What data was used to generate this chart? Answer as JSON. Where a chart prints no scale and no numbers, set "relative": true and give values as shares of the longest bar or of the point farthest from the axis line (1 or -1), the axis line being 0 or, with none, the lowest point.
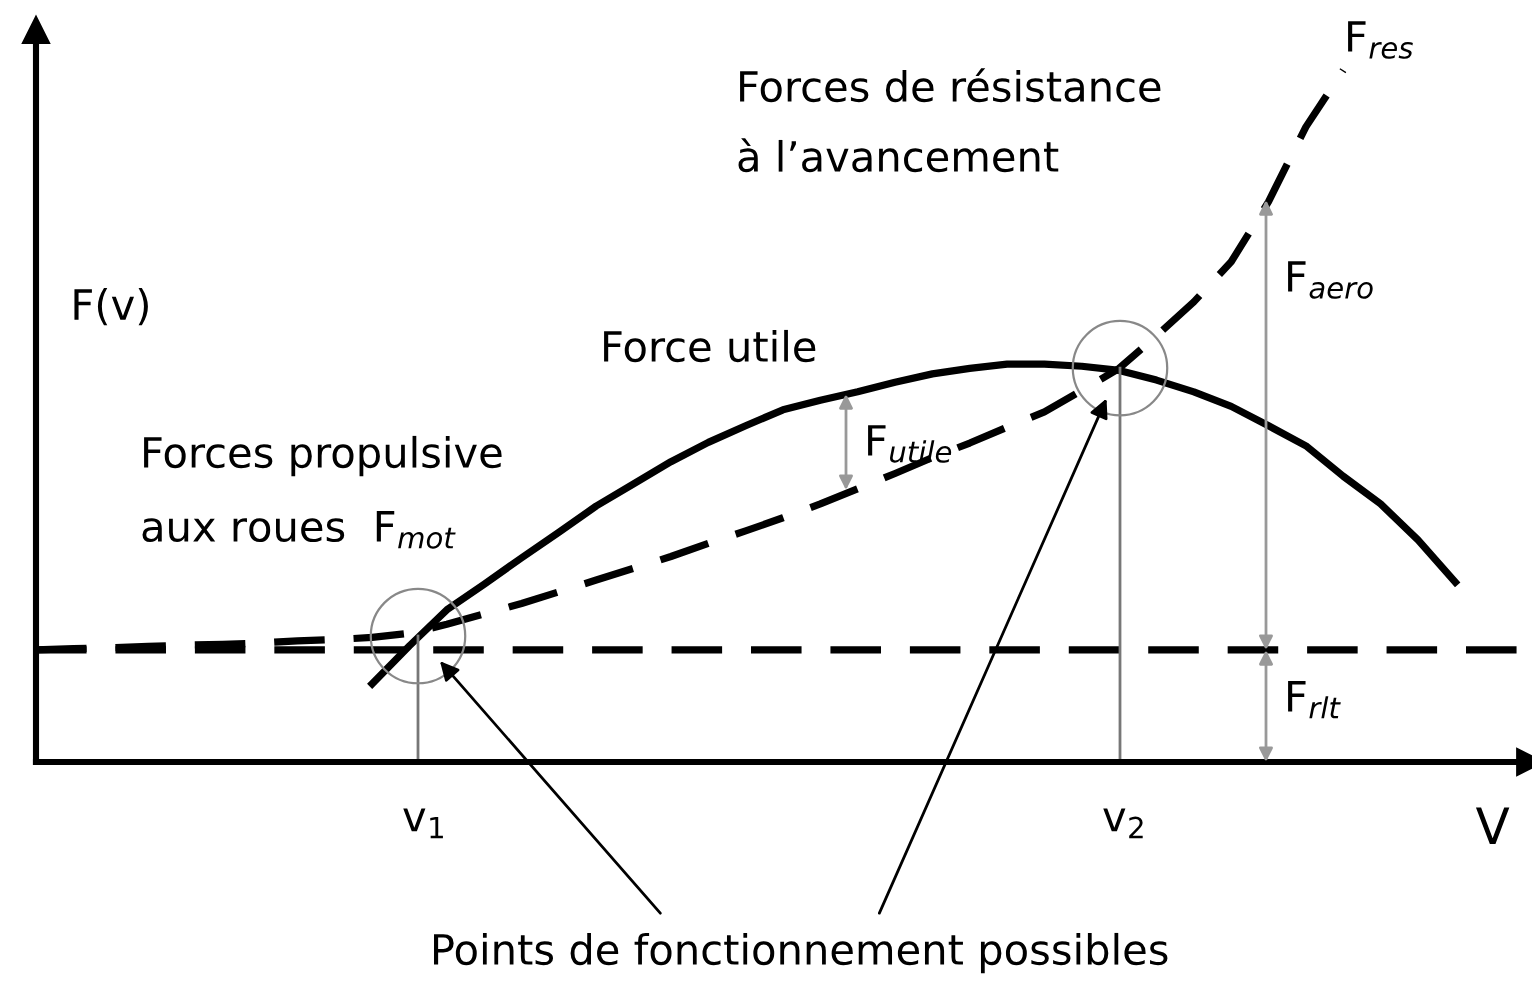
{
  "chart_data": {
    "type": "line",
    "relative": true,
    "xlabel": "V",
    "ylabel": "F(v)",
    "marker": "none",
    "categories": [
      null,
      null,
      null,
      null,
      null,
      null,
      null,
      null,
      null,
      null,
      null,
      null,
      null,
      null,
      null,
      null,
      null,
      null,
      null,
      null,
      null,
      null,
      null,
      null,
      null,
      null,
      null,
      null,
      null,
      null,
      null,
      null,
      null,
      null,
      null,
      null,
      null,
      null,
      null,
      null,
      null
    ],
    "series": [
      {
        "color": "#000000",
        "line_style": "solid",
        "values": [
          null,
          null,
          null,
          null,
          null,
          null,
          null,
          null,
          null,
          0.113,
          0.168,
          0.22,
          0.257,
          0.295,
          0.332,
          0.37,
          0.402,
          0.434,
          0.462,
          0.486,
          0.509,
          0.523,
          0.535,
          0.549,
          0.561,
          0.569,
          0.575,
          0.575,
          0.572,
          0.566,
          0.552,
          0.535,
          0.514,
          0.486,
          0.457,
          0.413,
          0.373,
          0.321,
          0.26,
          null,
          null
        ]
      },
      {
        "color": "#000000",
        "line_style": "dashed",
        "values": [
          0.162,
          0.164,
          0.165,
          0.167,
          0.169,
          0.17,
          0.172,
          0.175,
          0.177,
          0.18,
          0.186,
          0.199,
          0.214,
          0.229,
          0.246,
          0.263,
          0.28,
          0.297,
          0.316,
          0.334,
          0.353,
          0.373,
          0.395,
          0.417,
          0.44,
          0.461,
          0.484,
          0.506,
          0.537,
          0.569,
          0.616,
          0.665,
          0.723,
          0.81,
          0.918,
          1.0,
          null,
          null,
          null,
          null,
          null
        ]
      },
      {
        "color": "#000000",
        "line_style": "dashed",
        "values": [
          0.162,
          0.162,
          0.162,
          0.162,
          0.162,
          0.162,
          0.162,
          0.162,
          0.162,
          0.162,
          0.162,
          0.162,
          0.162,
          0.162,
          0.162,
          0.162,
          0.162,
          0.162,
          0.162,
          0.162,
          0.162,
          0.162,
          0.162,
          0.162,
          0.162,
          0.162,
          0.162,
          0.162,
          0.162,
          0.162,
          0.162,
          0.162,
          0.162,
          0.162,
          0.162,
          0.162,
          0.162,
          0.162,
          0.162,
          0.162,
          0.162
        ]
      }
    ],
    "annotations": [
      "v$_{1}$",
      "v$_{2}$",
      "Forces propulsive",
      "aux roues  F$_{mot}$",
      "Force utile",
      "Forces de résistance",
      "à l’avancement",
      "F$_{res}$",
      "F$_{utile}$",
      "F$_{aero}$",
      "F$_{rlt}$",
      "Points de fonctionnement possibles"
    ]
  }
}
